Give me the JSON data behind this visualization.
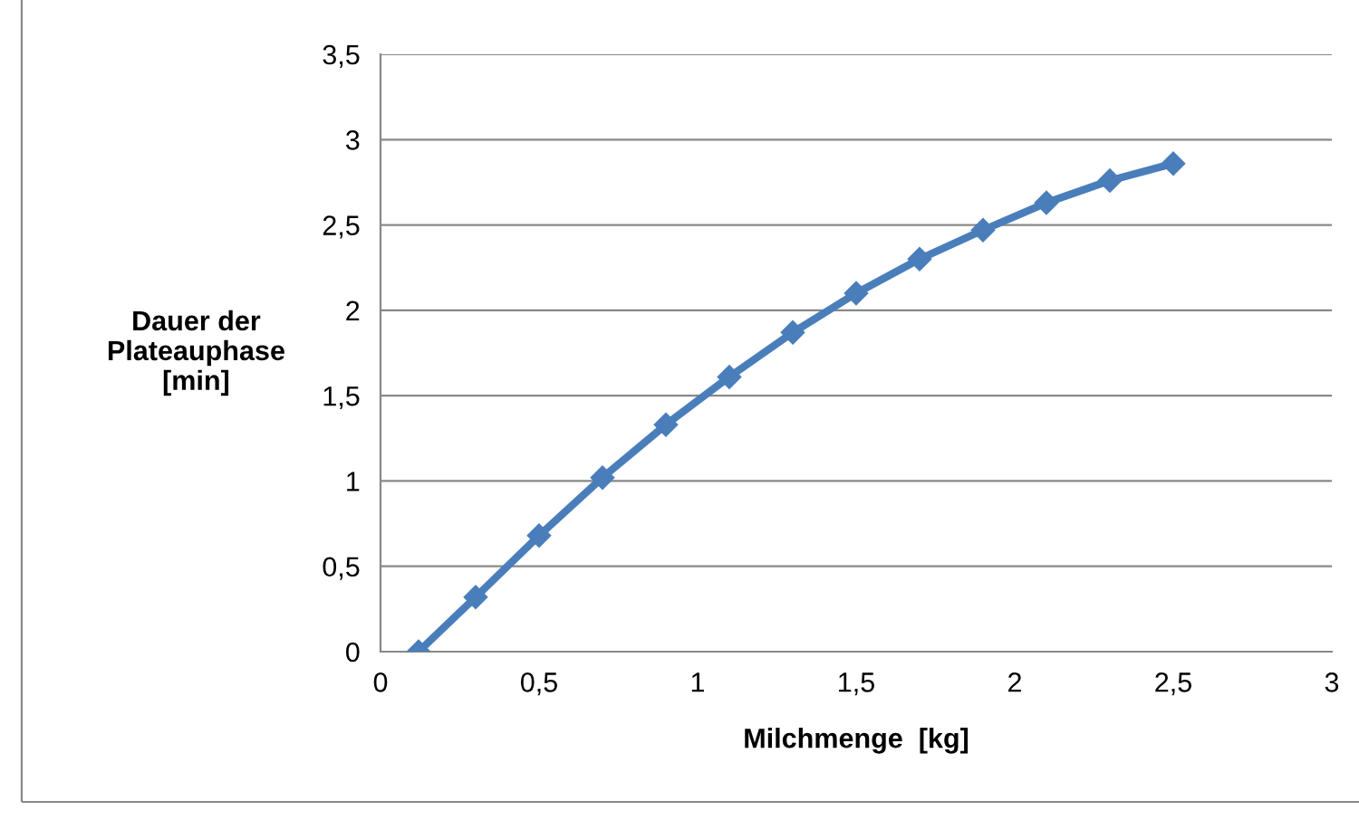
{
  "chart_data": {
    "type": "line",
    "xlabel": "Milchmenge  [kg]",
    "ylabel": "Dauer der\nPlateauphase\n[min]",
    "series": [
      {
        "color": "#4a7ebb",
        "x": [
          0.12,
          0.3,
          0.5,
          0.7,
          0.9,
          1.1,
          1.3,
          1.5,
          1.7,
          1.9,
          2.1,
          2.3,
          2.5
        ],
        "values": [
          0,
          0.32,
          0.68,
          1.02,
          1.33,
          1.61,
          1.87,
          2.1,
          2.3,
          2.47,
          2.63,
          2.76,
          2.86
        ]
      }
    ],
    "xlim": [
      0,
      3
    ],
    "xticks": [
      0,
      {
        "value": 0.5,
        "label": "0,5"
      },
      1,
      {
        "value": 1.5,
        "label": "1,5"
      },
      2,
      {
        "value": 2.5,
        "label": "2,5"
      },
      3
    ],
    "ylim": [
      0,
      3.5
    ],
    "yticks": [
      0,
      {
        "value": 0.5,
        "label": "0,5"
      },
      1,
      {
        "value": 1.5,
        "label": "1,5"
      },
      2,
      {
        "value": 2.5,
        "label": "2,5"
      },
      3,
      {
        "value": 3.5,
        "label": "3,5"
      }
    ],
    "grid": "y",
    "marker": "diamond",
    "line_style": "solid",
    "legend": false
  }
}
